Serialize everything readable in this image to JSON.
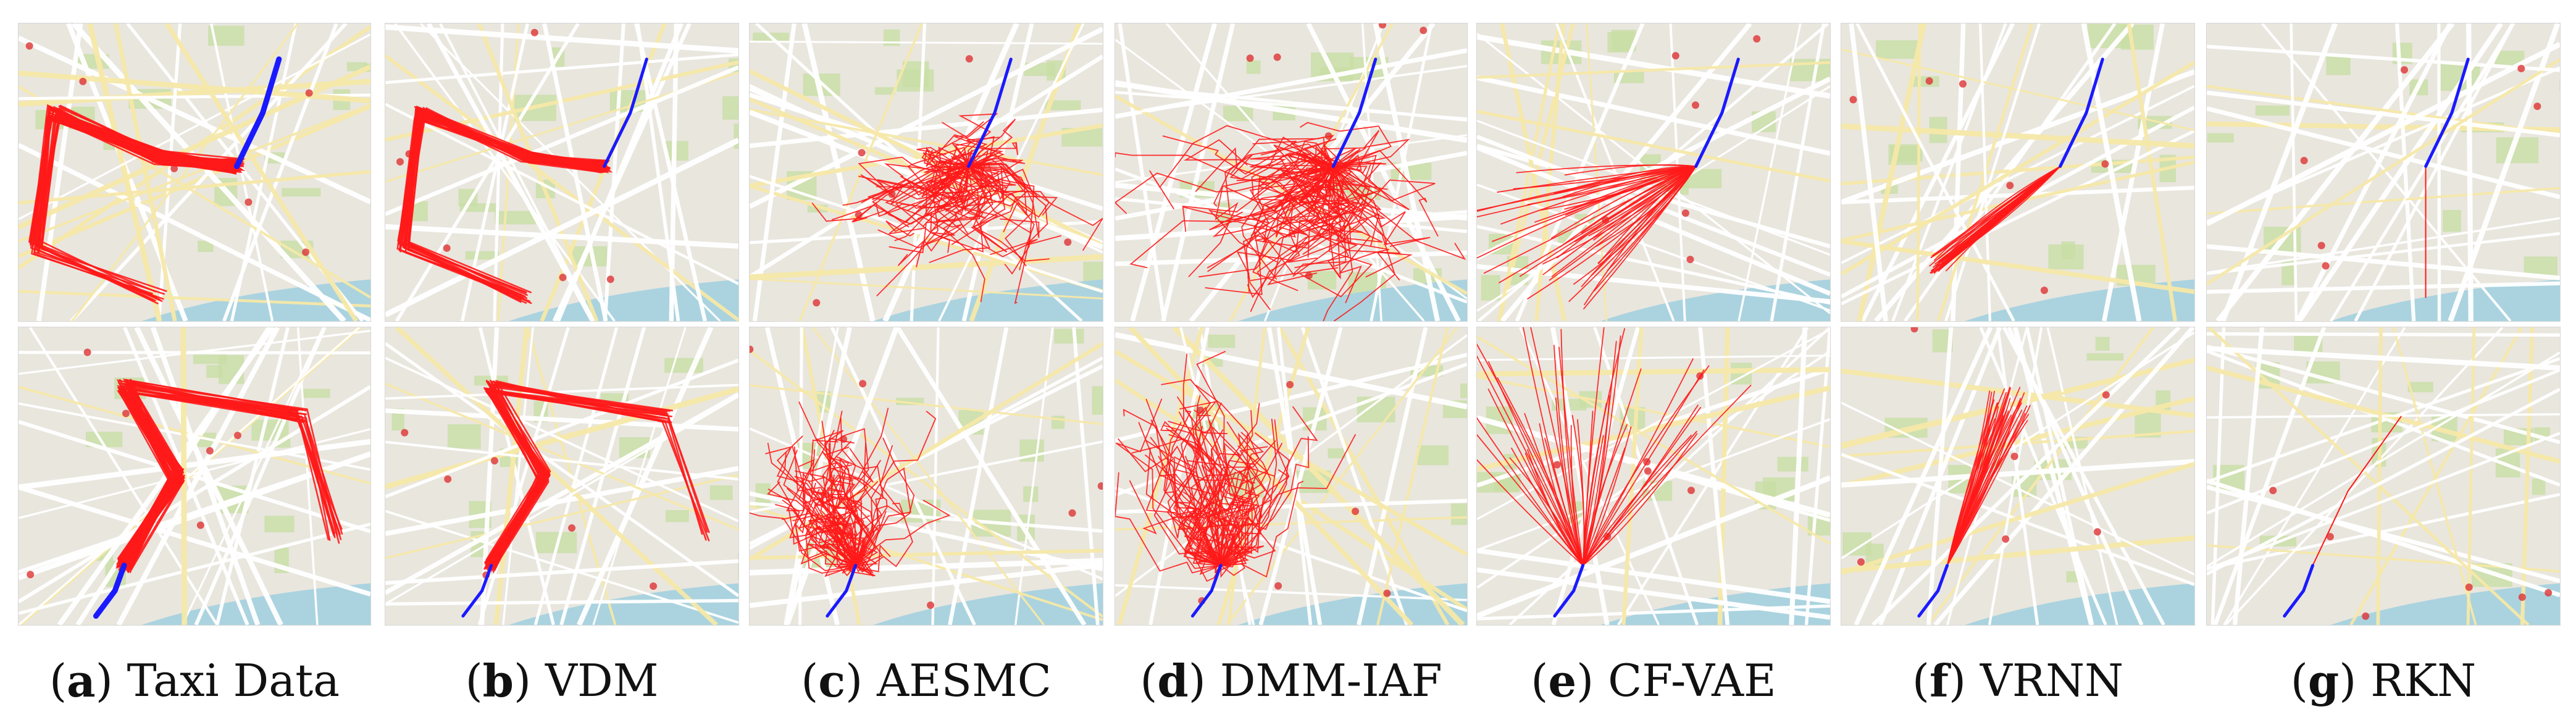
{
  "figure": {
    "captions": [
      {
        "letter": "a",
        "label": "Taxi Data"
      },
      {
        "letter": "b",
        "label": "VDM"
      },
      {
        "letter": "c",
        "label": "AESMC"
      },
      {
        "letter": "d",
        "label": "DMM-IAF"
      },
      {
        "letter": "e",
        "label": "CF-VAE"
      },
      {
        "letter": "f",
        "label": "VRNN"
      },
      {
        "letter": "g",
        "label": "RKN"
      }
    ],
    "colors": {
      "trajectory_prediction": "#ff1a1a",
      "trajectory_history": "#1a1aff",
      "map_background": "#e9e6de",
      "map_roads": "#ffffff",
      "map_water": "#aad3df",
      "map_parks": "#c8dfa5"
    }
  }
}
